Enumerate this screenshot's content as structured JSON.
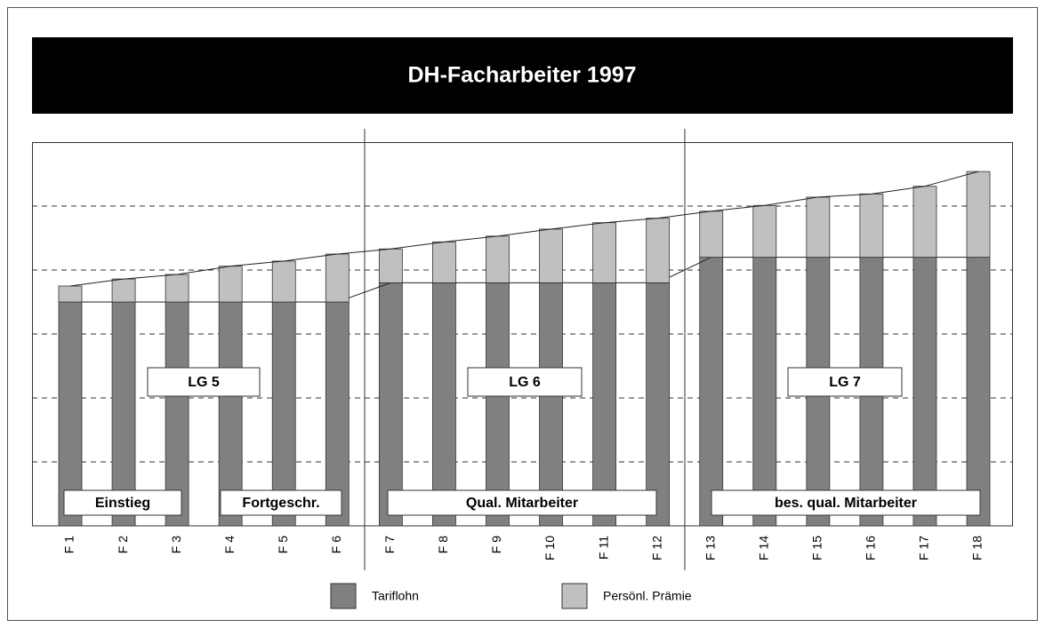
{
  "chart_data": {
    "type": "bar",
    "stacked": true,
    "title": "DH-Facharbeiter 1997",
    "categories": [
      "F 1",
      "F 2",
      "F 3",
      "F 4",
      "F 5",
      "F 6",
      "F 7",
      "F 8",
      "F 9",
      "F 10",
      "F 11",
      "F 12",
      "F 13",
      "F 14",
      "F 15",
      "F 16",
      "F 17",
      "F 18"
    ],
    "series": [
      {
        "name": "Tariflohn",
        "color": "#808080",
        "values": [
          3.5,
          3.5,
          3.5,
          3.5,
          3.5,
          3.5,
          3.8,
          3.8,
          3.8,
          3.8,
          3.8,
          3.8,
          4.2,
          4.2,
          4.2,
          4.2,
          4.2,
          4.2
        ]
      },
      {
        "name": "Persönl. Prämie",
        "color": "#c0c0c0",
        "values": [
          0.25,
          0.36,
          0.43,
          0.56,
          0.64,
          0.75,
          0.53,
          0.64,
          0.73,
          0.84,
          0.94,
          1.01,
          0.72,
          0.81,
          0.94,
          0.99,
          1.11,
          1.34
        ]
      }
    ],
    "ylim": [
      0,
      6
    ],
    "yticks": [
      1,
      2,
      3,
      4,
      5
    ],
    "grid": true,
    "annotations": [
      "LG 5",
      "LG 6",
      "LG 7",
      "Einstieg",
      "Fortgeschr.",
      "Qual. Mitarbeiter",
      "bes. qual. Mitarbeiter"
    ]
  }
}
